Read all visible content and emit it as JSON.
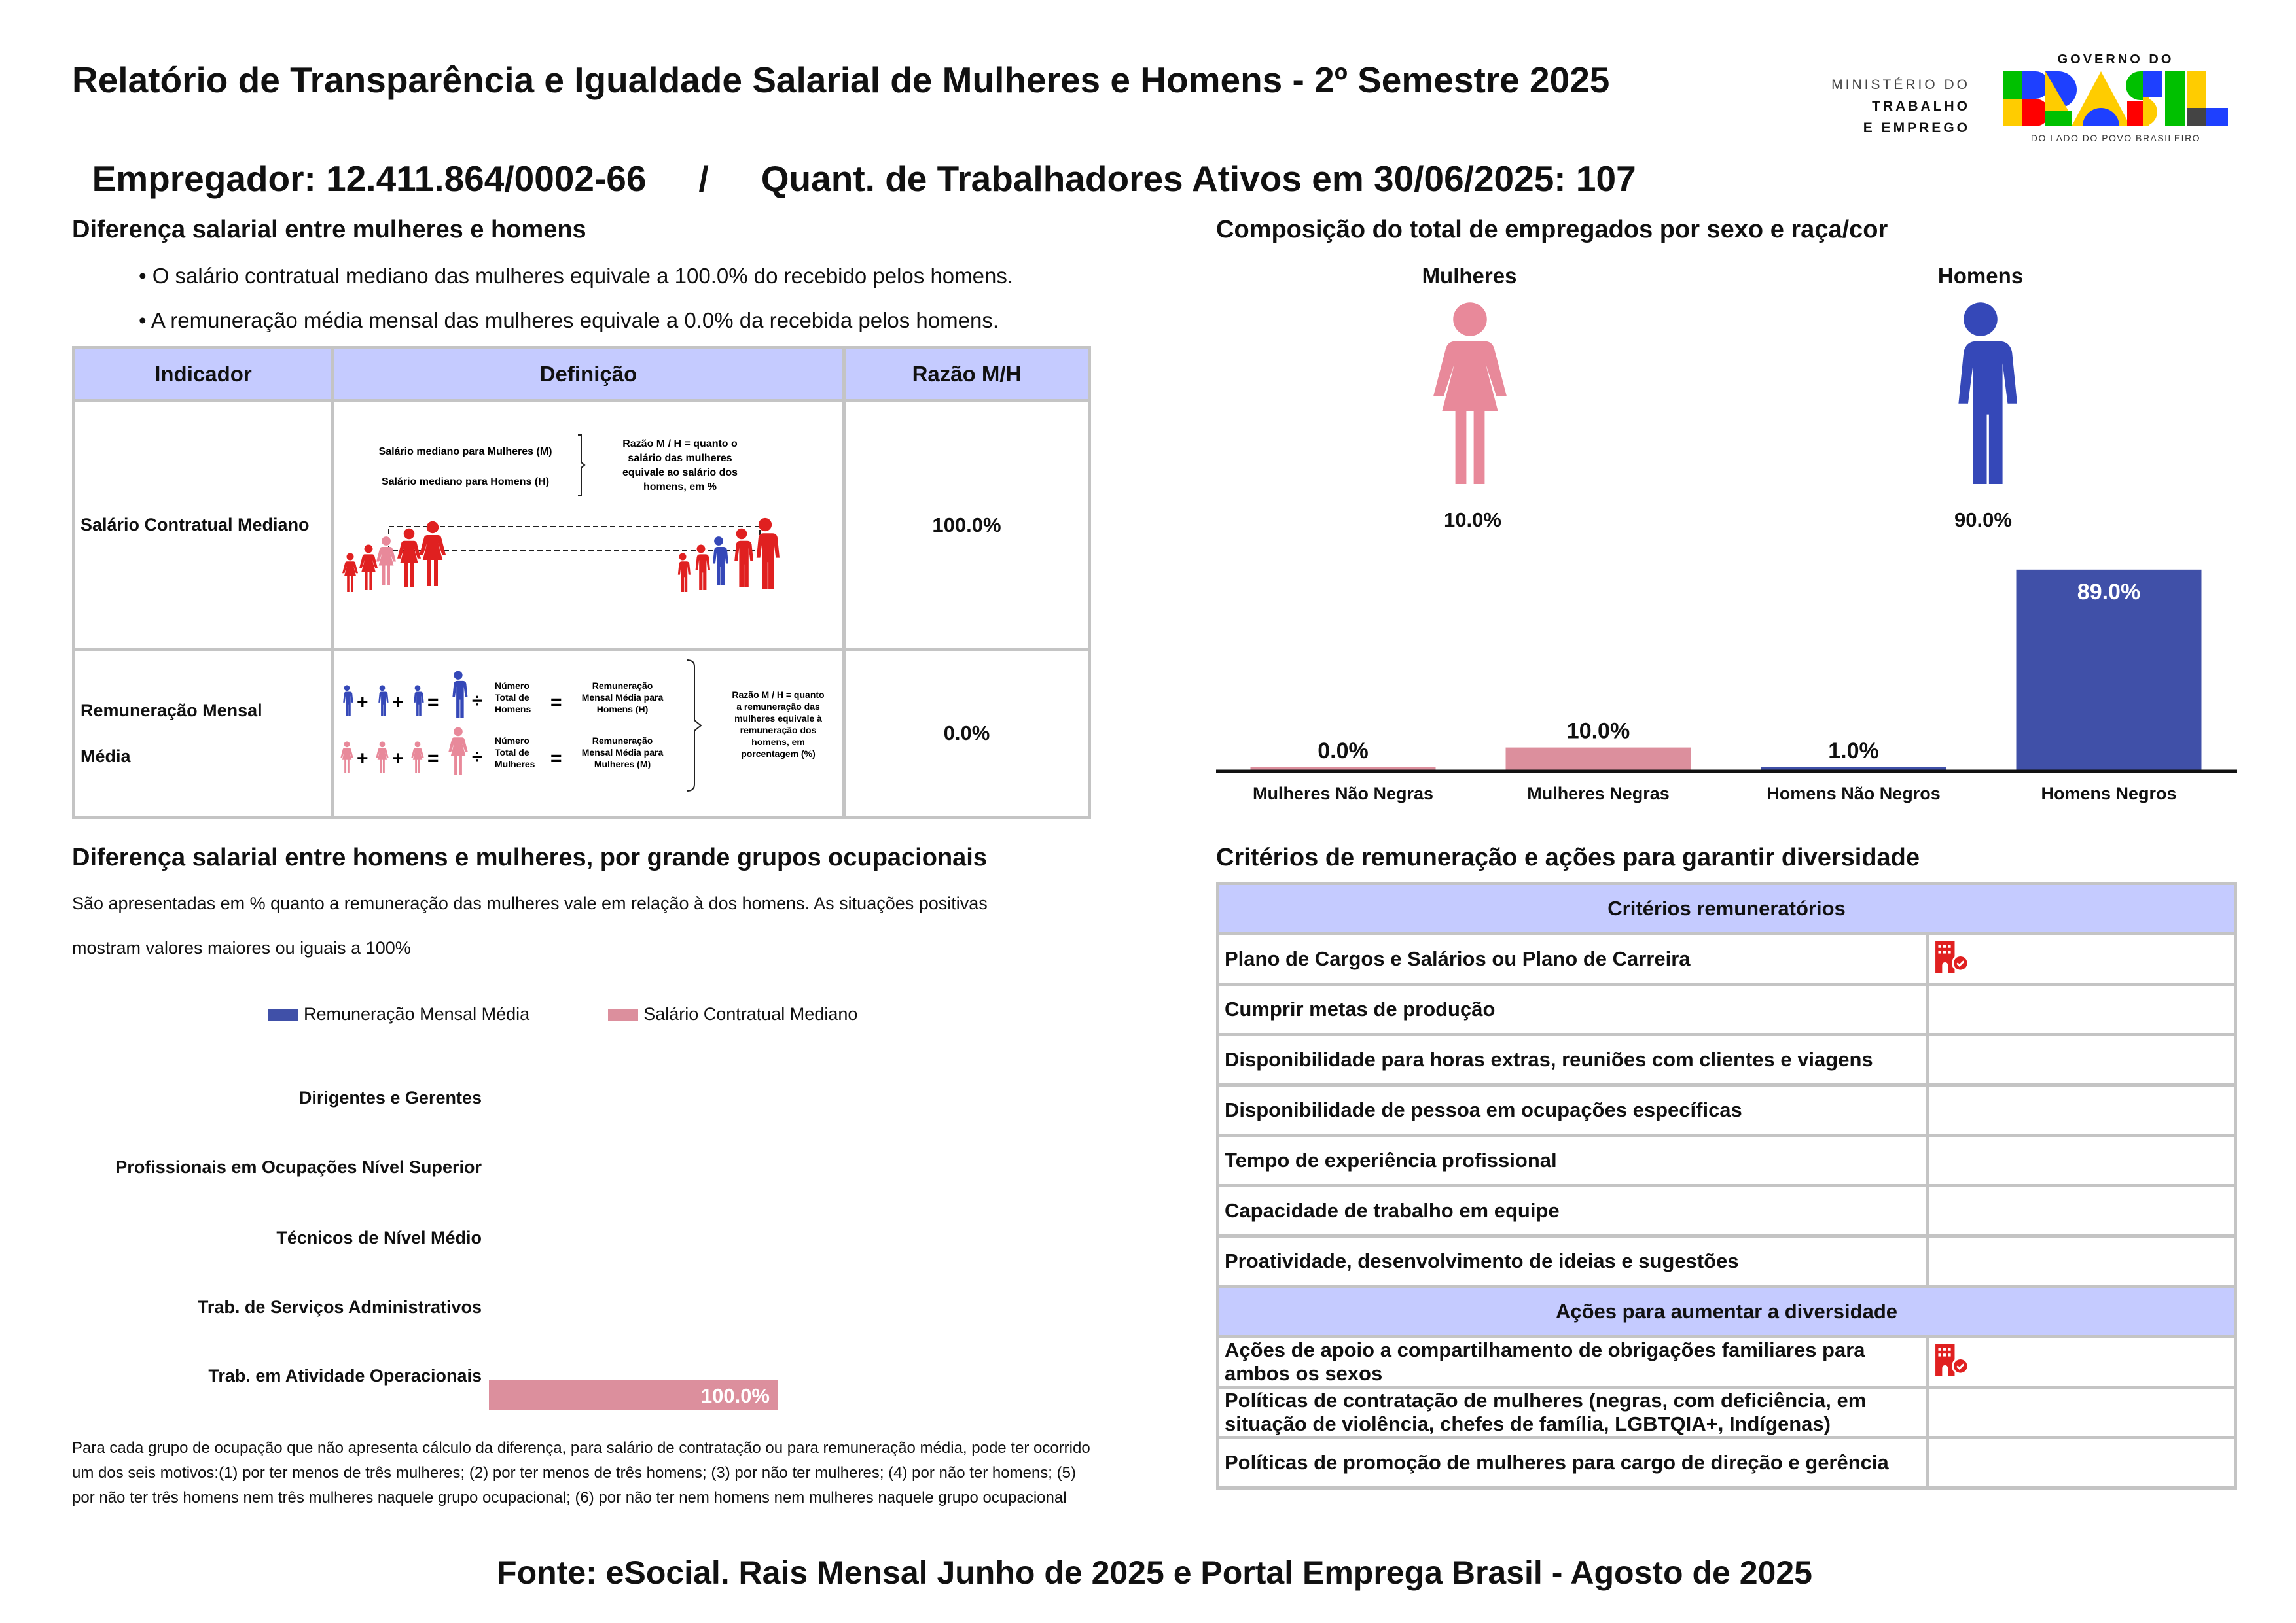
{
  "header": {
    "title_line1": "Relatório de Transparência e Igualdade Salarial de Mulheres e Homens - 2º Semestre 2025",
    "employer": "Empregador: 12.411.864/0002-66",
    "separator": "/",
    "workers": "Quant. de Trabalhadores Ativos em 30/06/2025: 107",
    "ministry_line1": "MINISTÉRIO DO",
    "ministry_line2": "TRABALHO",
    "ministry_line3": "E EMPREGO",
    "gov_line": "GOVERNO DO",
    "gov_brasil": "BRASIL",
    "gov_slogan": "DO LADO DO POVO BRASILEIRO"
  },
  "salary_diff": {
    "title": "Diferença salarial entre mulheres e homens",
    "bullet1": "• O salário contratual mediano das mulheres equivale a 100.0% do recebido pelos homens.",
    "bullet2": "• A remuneração média mensal das mulheres equivale a 0.0% da recebida pelos homens.",
    "table": {
      "headers": [
        "Indicador",
        "Definição",
        "Razão M/H"
      ],
      "rows": [
        {
          "indicator": "Salário Contratual Mediano",
          "ratio": "100.0%"
        },
        {
          "indicator_line1": "Remuneração Mensal",
          "indicator_line2": "Média",
          "ratio": "0.0%"
        }
      ],
      "illus1": {
        "women_label": "Salário mediano para Mulheres (M)",
        "men_label": "Salário mediano para Homens (H)",
        "ratio_lines": [
          "Razão M / H = quanto o",
          "salário das mulheres",
          "equivale ao salário dos",
          "homens, em %"
        ]
      },
      "illus2": {
        "men_count": [
          "Número",
          "Total de",
          "Homens"
        ],
        "men_result": [
          "Remuneração",
          "Mensal Média para",
          "Homens (H)"
        ],
        "women_count": [
          "Número",
          "Total de",
          "Mulheres"
        ],
        "women_result": [
          "Remuneração",
          "Mensal Média para",
          "Mulheres (M)"
        ],
        "ratio_lines": [
          "Razão M / H = quanto",
          "a remuneração das",
          "mulheres equivale à",
          "remuneração dos",
          "homens, em",
          "porcentagem (%)"
        ],
        "plus": "+",
        "equals": "=",
        "divide": "÷"
      }
    }
  },
  "composition": {
    "title": "Composição do total de empregados por sexo e raça/cor",
    "women_label": "Mulheres",
    "men_label": "Homens",
    "women_pct": "10.0%",
    "men_pct": "90.0%"
  },
  "chart_data": [
    {
      "type": "bar",
      "categories": [
        "Mulheres Não Negras",
        "Mulheres Negras",
        "Homens Não Negros",
        "Homens Negros"
      ],
      "values": [
        0.0,
        10.0,
        1.0,
        89.0
      ],
      "labels": [
        "0.0%",
        "10.0%",
        "1.0%",
        "89.0%"
      ],
      "colors": [
        "#dc8f9d",
        "#dc8f9d",
        "#4050a8",
        "#4050a8"
      ],
      "grid": false
    },
    {
      "type": "bar",
      "orientation": "horizontal",
      "title": "Diferença salarial entre homens e mulheres, por grande grupos ocupacionais",
      "description_line1": "São apresentadas em % quanto a remuneração das mulheres vale em relação à dos homens. As situações positivas",
      "description_line2": "mostram valores maiores ou iguais a 100%",
      "categories": [
        "Dirigentes e Gerentes",
        "Profissionais em Ocupações Nível Superior",
        "Técnicos de Nível Médio",
        "Trab. de Serviços Administrativos",
        "Trab. em Atividade Operacionais"
      ],
      "series": [
        {
          "name": "Remuneração Mensal Média",
          "color": "#4050a8",
          "values": [
            null,
            null,
            null,
            null,
            null
          ]
        },
        {
          "name": "Salário Contratual Mediano",
          "color": "#dc8f9d",
          "values": [
            null,
            null,
            null,
            null,
            100.0
          ],
          "labels": [
            null,
            null,
            null,
            null,
            "100.0%"
          ]
        }
      ],
      "legend": "top",
      "grid": false,
      "footnote": "Para cada grupo de ocupação que não apresenta cálculo da diferença, para salário de contratação ou para remuneração média, pode ter ocorrido um dos seis motivos:(1) por ter menos de três mulheres; (2) por ter menos de três homens; (3) por não ter mulheres; (4) por não ter homens; (5) por não ter três homens nem três mulheres naquele grupo ocupacional; (6) por não ter nem homens nem mulheres naquele grupo ocupacional"
    }
  ],
  "criteria": {
    "title": "Critérios de remuneração e ações para garantir diversidade",
    "header1": "Critérios remuneratórios",
    "rows1": [
      {
        "label": "Plano de Cargos e Salários ou Plano de Carreira",
        "checked": true
      },
      {
        "label": "Cumprir metas de produção",
        "checked": false
      },
      {
        "label": "Disponibilidade para horas extras, reuniões com clientes e viagens",
        "checked": false
      },
      {
        "label": "Disponibilidade de pessoa em ocupações específicas",
        "checked": false
      },
      {
        "label": "Tempo de experiência profissional",
        "checked": false
      },
      {
        "label": "Capacidade de trabalho em equipe",
        "checked": false
      },
      {
        "label": "Proatividade, desenvolvimento de ideias e sugestões",
        "checked": false
      }
    ],
    "header2": "Ações para aumentar a diversidade",
    "rows2": [
      {
        "label": "Ações de apoio a compartilhamento de obrigações familiares para ambos os sexos",
        "checked": true
      },
      {
        "label": "Políticas de contratação de mulheres (negras, com deficiência, em situação de violência, chefes de família, LGBTQIA+, Indígenas)",
        "checked": false
      },
      {
        "label": "Políticas de promoção de mulheres para cargo de direção e gerência",
        "checked": false
      }
    ],
    "check_icon": "building-check-icon",
    "icon_color": "#e02020"
  },
  "footer": {
    "source": "Fonte: eSocial. Rais Mensal Junho de 2025 e Portal Emprega Brasil - Agosto de 2025"
  },
  "colors": {
    "header_bg": "#c5cbff",
    "women": "#e8899a",
    "men": "#3548b8",
    "red": "#e02020"
  }
}
